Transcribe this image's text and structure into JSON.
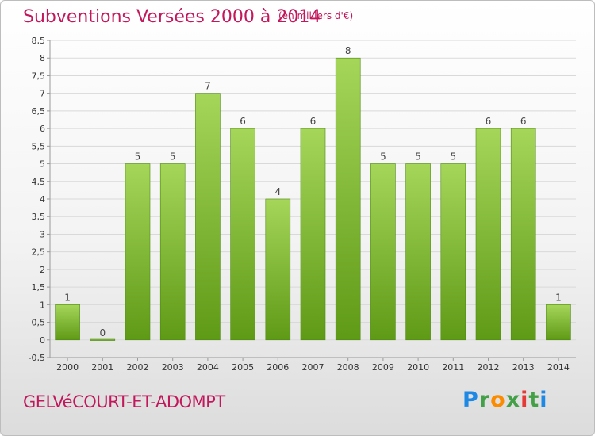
{
  "header": {
    "title": "Subventions Versées 2000 à 2014",
    "unit": "(en milliers d'€)"
  },
  "footer": {
    "commune": "GELVéCOURT-ET-ADOMPT",
    "brand": "Proxiti"
  },
  "colors": {
    "title": "#c2185b",
    "bar_light": "#a5d65a",
    "bar_dark": "#5f9a16",
    "grid": "#d9d9d9",
    "axis_text": "#333333"
  },
  "chart_data": {
    "type": "bar",
    "title": "Subventions Versées 2000 à 2014",
    "subtitle": "(en milliers d'€)",
    "xlabel": "",
    "ylabel": "",
    "categories": [
      "2000",
      "2001",
      "2002",
      "2003",
      "2004",
      "2005",
      "2006",
      "2007",
      "2008",
      "2009",
      "2010",
      "2011",
      "2012",
      "2013",
      "2014"
    ],
    "values": [
      1,
      0,
      5,
      5,
      7,
      6,
      4,
      6,
      8,
      5,
      5,
      5,
      6,
      6,
      1
    ],
    "data_labels": [
      "1",
      "0",
      "5",
      "5",
      "7",
      "6",
      "4",
      "6",
      "8",
      "5",
      "5",
      "5",
      "6",
      "6",
      "1"
    ],
    "y_ticks": [
      "-0,5",
      "0",
      "0,5",
      "1",
      "1,5",
      "2",
      "2,5",
      "3",
      "3,5",
      "4",
      "4,5",
      "5",
      "5,5",
      "6",
      "6,5",
      "7",
      "7,5",
      "8",
      "8,5"
    ],
    "ylim": [
      -0.5,
      8.5
    ],
    "grid": true,
    "legend": "none"
  }
}
